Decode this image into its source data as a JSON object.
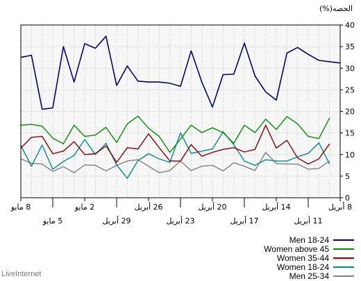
{
  "chart_data": {
    "type": "line",
    "title": "",
    "ylabel": "الحصه(%)",
    "xlabel": "",
    "ylim": [
      0,
      40
    ],
    "y_ticks": [
      0,
      5,
      10,
      15,
      20,
      25,
      30,
      35,
      40
    ],
    "grid": true,
    "legend_position": "bottom-right",
    "x_tick_labels_row1": [
      "8 مايو",
      "2 مايو",
      "26 أبريل",
      "20 أبريل",
      "14 أبريل",
      "8 أبريل"
    ],
    "x_tick_labels_row2": [
      "5 مايو",
      "29 أبريل",
      "23 أبريل",
      "17 أبريل",
      "11 أبريل"
    ],
    "x_direction": "right-to-left",
    "points": 31,
    "series": [
      {
        "name": "Men 18-24",
        "color": "#000080",
        "values": [
          32.5,
          33,
          20.5,
          20.8,
          35,
          26.8,
          35.7,
          34.6,
          37.4,
          26,
          30.5,
          27,
          26.8,
          26.8,
          26.5,
          25.8,
          34,
          26.8,
          21,
          28.5,
          28.6,
          35.8,
          28.2,
          24.5,
          22.6,
          33.5,
          34.8,
          33.2,
          31.8,
          31.5,
          31.2
        ]
      },
      {
        "name": "Women above 45",
        "color": "#009000",
        "values": [
          16.8,
          17,
          16.6,
          13.8,
          12.5,
          16.8,
          14.2,
          14.5,
          16.3,
          12.8,
          17.1,
          18.9,
          16.1,
          14.2,
          10.5,
          13.6,
          16.8,
          15.1,
          16.2,
          15.1,
          12.6,
          16.8,
          15.1,
          18.2,
          15.8,
          18.8,
          17.1,
          14.2,
          13.7,
          18.5,
          null
        ]
      },
      {
        "name": "Women 35-44",
        "color": "#8b0000",
        "values": [
          11.5,
          14,
          14.2,
          10.2,
          10.8,
          13,
          10,
          10.2,
          12,
          8.2,
          11.6,
          11.3,
          14.8,
          11.6,
          8.5,
          8.5,
          12.3,
          9.6,
          10.5,
          11.2,
          11.6,
          10.6,
          11.2,
          16.8,
          11.5,
          13.3,
          9.2,
          7.8,
          9,
          12.5,
          null
        ]
      },
      {
        "name": "Women 18-24",
        "color": "#008b8b",
        "values": [
          12.1,
          7.3,
          12.2,
          6.6,
          8.4,
          9.8,
          13.5,
          10,
          12.6,
          7.6,
          4.5,
          8.6,
          10.2,
          9,
          8.2,
          15,
          10.3,
          10.8,
          11.3,
          15.3,
          12.3,
          8.5,
          7.5,
          8.8,
          8.5,
          8.5,
          9.5,
          10.3,
          12.7,
          7.8,
          null
        ]
      },
      {
        "name": "Men 25-34",
        "color": "#808080",
        "values": [
          9,
          8,
          7.8,
          6.1,
          7.2,
          5.8,
          7.6,
          7.5,
          6.2,
          7.5,
          8.5,
          8.8,
          7.3,
          5.8,
          6.3,
          8.5,
          6.3,
          7.3,
          7.5,
          6.2,
          8.1,
          7.3,
          6.3,
          10.5,
          7.9,
          7.8,
          7.8,
          6.6,
          6.8,
          8.5,
          null
        ]
      }
    ]
  },
  "unit_label": "الحصه(%)",
  "brand": "LiveInternet"
}
